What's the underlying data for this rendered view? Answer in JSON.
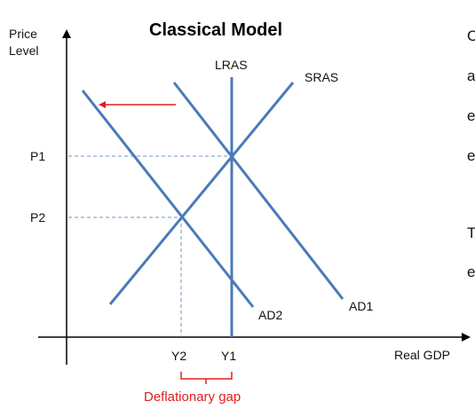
{
  "title": "Classical Model",
  "axes": {
    "y_label_line1": "Price",
    "y_label_line2": "Level",
    "x_label": "Real GDP"
  },
  "curves": {
    "lras": "LRAS",
    "sras": "SRAS",
    "ad1": "AD1",
    "ad2": "AD2"
  },
  "levels": {
    "p1": "P1",
    "p2": "P2",
    "y1": "Y1",
    "y2": "Y2"
  },
  "gap_label": "Deflationary gap",
  "side_text": [
    "C",
    "a",
    "e",
    "e",
    "T",
    "e"
  ],
  "colors": {
    "curve": "#4a7ab8",
    "axis": "#000000",
    "guide": "#6f93c4",
    "arrow": "#e02020",
    "gap": "#e02020"
  }
}
